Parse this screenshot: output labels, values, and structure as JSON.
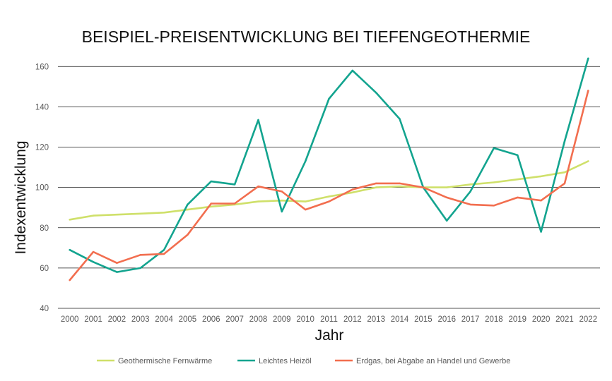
{
  "chart_data": {
    "type": "line",
    "title": "BEISPIEL-PREISENTWICKLUNG BEI TIEFENGEOTHERMIE",
    "xlabel": "Jahr",
    "ylabel": "Indexentwicklung",
    "ylim": [
      40,
      165
    ],
    "yticks": [
      40,
      60,
      80,
      100,
      120,
      140,
      160
    ],
    "grid": true,
    "legend_position": "bottom",
    "categories": [
      "2000",
      "2001",
      "2002",
      "2003",
      "2004",
      "2005",
      "2006",
      "2007",
      "2008",
      "2009",
      "2010",
      "2011",
      "2012",
      "2013",
      "2014",
      "2015",
      "2016",
      "2017",
      "2018",
      "2019",
      "2020",
      "2021",
      "2022"
    ],
    "series": [
      {
        "name": "Geothermische Fernwärme",
        "color": "#cfe06a",
        "values": [
          84,
          86,
          86.5,
          87,
          87.5,
          89,
          90.5,
          91.5,
          93,
          93.5,
          93,
          95.5,
          97.5,
          100,
          100.5,
          100,
          100,
          101.5,
          102.5,
          104,
          105.5,
          107.5,
          113
        ]
      },
      {
        "name": "Leichtes Heizöl",
        "color": "#13a48f",
        "values": [
          69,
          63,
          58,
          60,
          69,
          91.5,
          103,
          101.5,
          133.5,
          88,
          113,
          144,
          158,
          147,
          134,
          100,
          83.5,
          98,
          119.5,
          116,
          78,
          123,
          164
        ]
      },
      {
        "name": "Erdgas, bei Abgabe an Handel und Gewerbe",
        "color": "#f26e4f",
        "values": [
          54,
          68,
          62.5,
          66.5,
          67,
          76.5,
          92,
          92,
          100.5,
          98,
          89,
          93,
          99,
          102,
          102,
          100,
          95,
          91.5,
          91,
          95,
          93.5,
          102,
          148
        ]
      }
    ]
  }
}
